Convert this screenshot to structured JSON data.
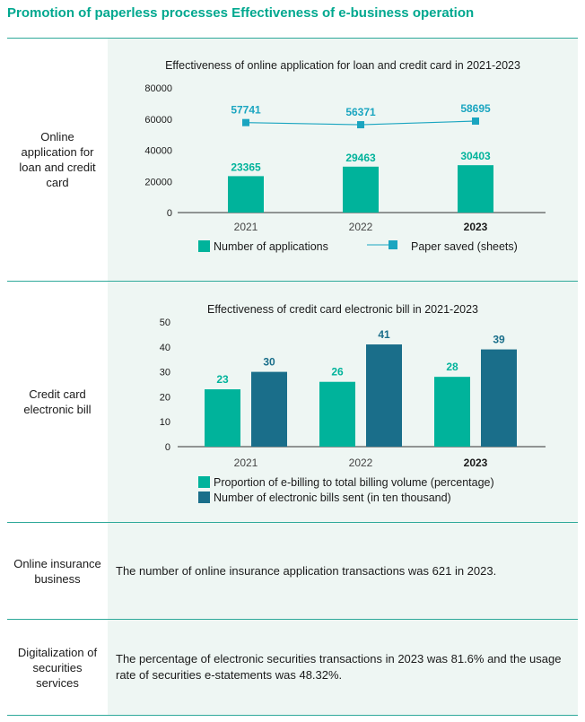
{
  "page_title": "Promotion of paperless processes Effectiveness of e-business operation",
  "colors": {
    "accent": "#00a88f",
    "teal": "#00b39b",
    "dark_teal": "#1a6e8a",
    "line": "#1aa5c0",
    "panel": "#eef6f3"
  },
  "rows": [
    {
      "label": "Online application for loan and credit card"
    },
    {
      "label": "Credit card electronic bill"
    },
    {
      "label": "Online insurance business",
      "text": "The number of online insurance application transactions was 621 in 2023."
    },
    {
      "label": "Digitalization of securities services",
      "text": "The percentage of electronic securities transactions in 2023 was 81.6% and the usage rate of securities e-statements was 48.32%."
    }
  ],
  "chart_data": [
    {
      "type": "bar",
      "title": "Effectiveness of online application for loan and credit card in 2021-2023",
      "categories": [
        "2021",
        "2022",
        "2023"
      ],
      "bold_category": "2023",
      "ylim": [
        0,
        80000
      ],
      "yticks": [
        "80000",
        "60000",
        "40000",
        "20000",
        "0"
      ],
      "series": [
        {
          "name": "Number of applications",
          "kind": "bar",
          "values": [
            23365,
            29463,
            30403
          ],
          "labels": [
            "23365",
            "29463",
            "30403"
          ]
        },
        {
          "name": "Paper saved (sheets)",
          "kind": "line",
          "values": [
            57741,
            56371,
            58695
          ],
          "labels": [
            "57741",
            "56371",
            "58695"
          ]
        }
      ]
    },
    {
      "type": "bar",
      "title": "Effectiveness of credit card electronic bill in 2021-2023",
      "categories": [
        "2021",
        "2022",
        "2023"
      ],
      "bold_category": "2023",
      "ylim": [
        0,
        50
      ],
      "yticks": [
        "50",
        "40",
        "30",
        "20",
        "10",
        "0"
      ],
      "series": [
        {
          "name": "Proportion of e-billing to total billing volume (percentage)",
          "kind": "bar",
          "values": [
            23,
            26,
            28
          ],
          "labels": [
            "23",
            "26",
            "28"
          ]
        },
        {
          "name": "Number of electronic bills sent (in ten thousand)",
          "kind": "bar",
          "values": [
            30,
            41,
            39
          ],
          "labels": [
            "30",
            "41",
            "39"
          ]
        }
      ]
    }
  ]
}
